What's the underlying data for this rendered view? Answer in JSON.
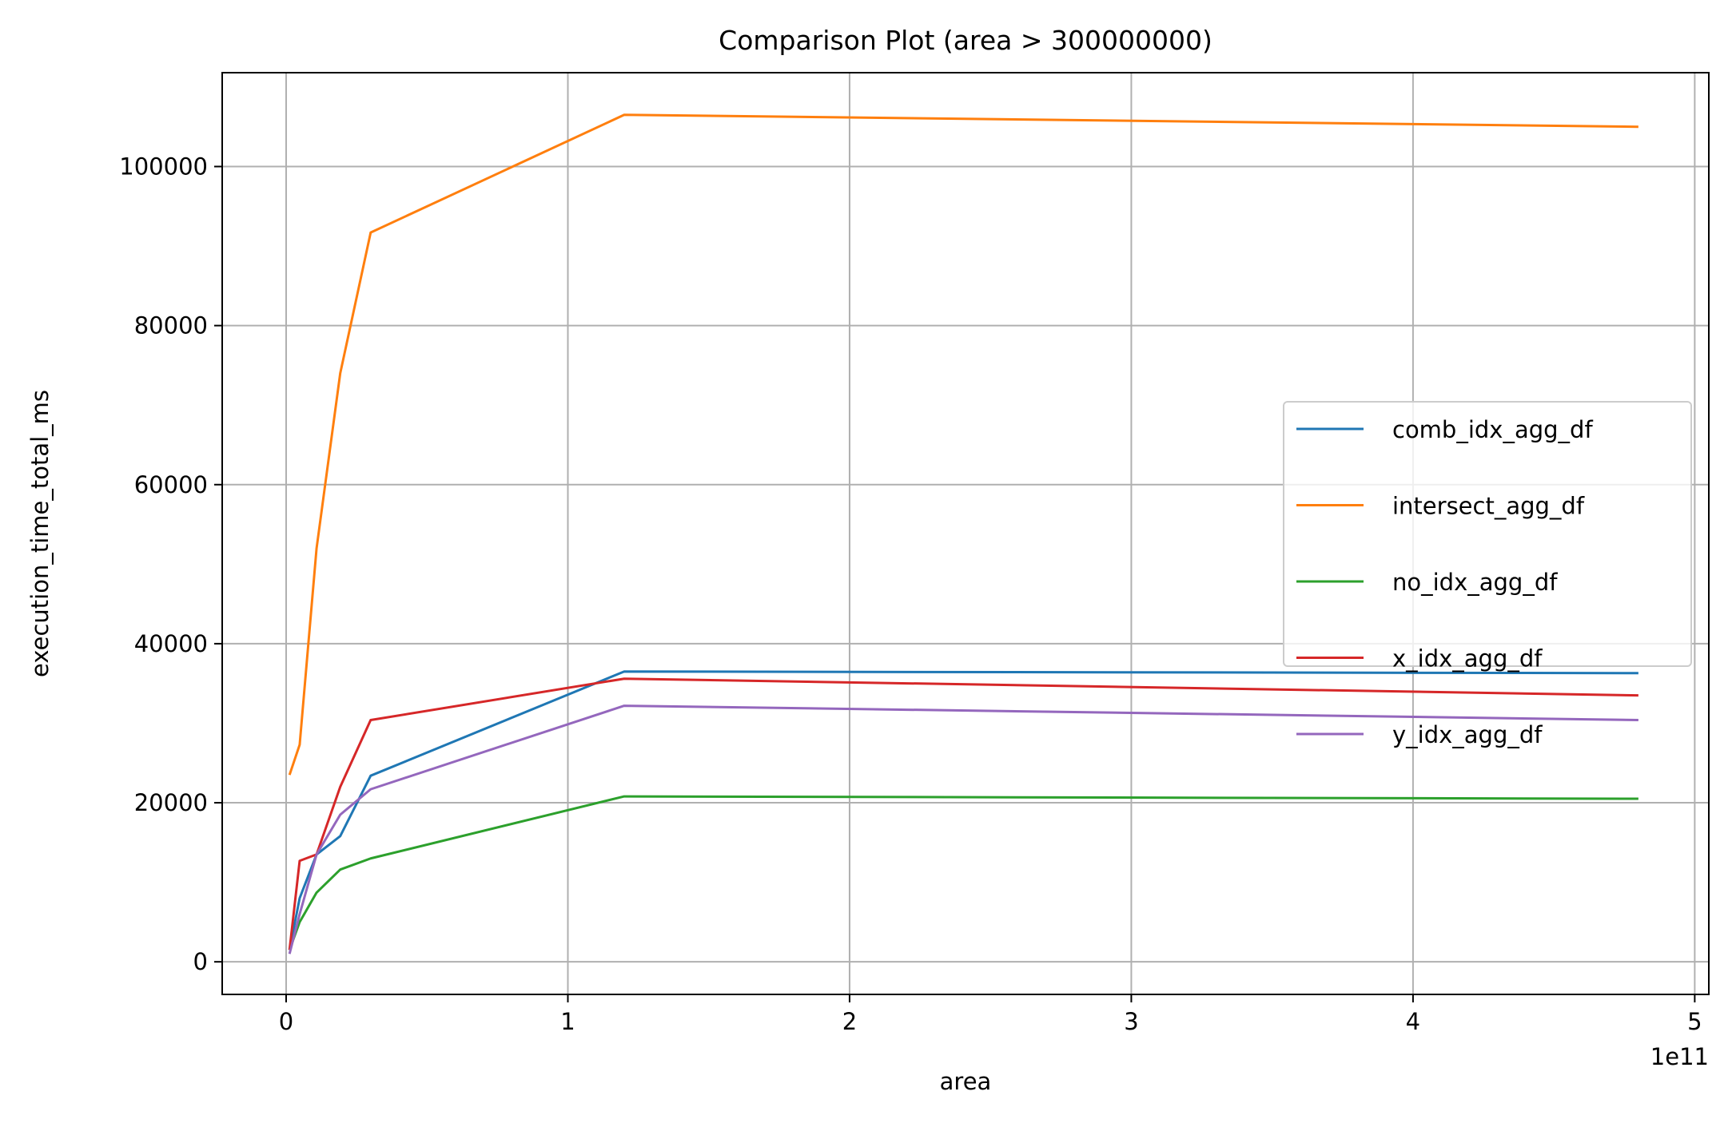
{
  "chart_data": {
    "type": "line",
    "title": "Comparison Plot (area > 300000000)",
    "xlabel": "area",
    "ylabel": "execution_time_total_ms",
    "x_offset_label": "1e11",
    "xlim": [
      -22700000000.0,
      505000000000.0
    ],
    "ylim": [
      -4100,
      111800
    ],
    "x_ticks": [
      0,
      100000000000.0,
      200000000000.0,
      300000000000.0,
      400000000000.0,
      500000000000.0
    ],
    "x_tick_labels": [
      "0",
      "1",
      "2",
      "3",
      "4",
      "5"
    ],
    "y_ticks": [
      0,
      20000,
      40000,
      60000,
      80000,
      100000
    ],
    "y_tick_labels": [
      "0",
      "20000",
      "40000",
      "60000",
      "80000",
      "100000"
    ],
    "grid": true,
    "legend_position": "center-right",
    "x": [
      1200000000.0,
      4800000000.0,
      10800000000.0,
      19200000000.0,
      30000000000.0,
      120000000000.0,
      480000000000.0
    ],
    "series": [
      {
        "name": "comb_idx_agg_df",
        "color": "#1f77b4",
        "values": [
          1500,
          8000,
          13500,
          15800,
          23400,
          36500,
          36300
        ]
      },
      {
        "name": "intersect_agg_df",
        "color": "#ff7f0e",
        "values": [
          23500,
          27300,
          52000,
          74000,
          91700,
          106500,
          105000
        ]
      },
      {
        "name": "no_idx_agg_df",
        "color": "#2ca02c",
        "values": [
          1500,
          5000,
          8700,
          11600,
          13000,
          20800,
          20500
        ]
      },
      {
        "name": "x_idx_agg_df",
        "color": "#d62728",
        "values": [
          1500,
          12700,
          13500,
          22000,
          30400,
          35600,
          33500
        ]
      },
      {
        "name": "y_idx_agg_df",
        "color": "#9467bd",
        "values": [
          1000,
          6000,
          13500,
          18500,
          21700,
          32200,
          30400
        ]
      }
    ]
  }
}
